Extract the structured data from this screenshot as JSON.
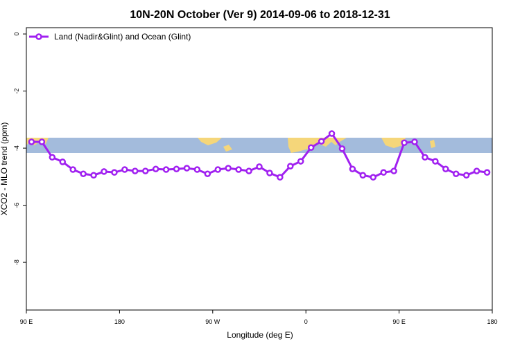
{
  "chart_data": {
    "type": "line",
    "title": "10N-20N October (Ver 9)   2014-09-06 to 2018-12-31",
    "x_label": "Longitude (deg E)",
    "y_label": "XCO2 - MLO trend (ppm)",
    "x": [
      95,
      105,
      115,
      125,
      135,
      145,
      155,
      165,
      175,
      185,
      195,
      205,
      215,
      225,
      235,
      245,
      255,
      265,
      275,
      285,
      295,
      305,
      315,
      325,
      335,
      345,
      355,
      365,
      375,
      385,
      395,
      405,
      415,
      425,
      435,
      445,
      455,
      465,
      475,
      485,
      495,
      505,
      515,
      525,
      535
    ],
    "series": [
      {
        "name": "Land (Nadir&Glint) and Ocean (Glint)",
        "color": "#a020f0",
        "values": [
          -3.78,
          -3.78,
          -4.32,
          -4.48,
          -4.75,
          -4.9,
          -4.95,
          -4.82,
          -4.85,
          -4.75,
          -4.8,
          -4.8,
          -4.73,
          -4.75,
          -4.73,
          -4.7,
          -4.75,
          -4.9,
          -4.75,
          -4.7,
          -4.75,
          -4.8,
          -4.65,
          -4.87,
          -5.02,
          -4.63,
          -4.46,
          -3.98,
          -3.76,
          -3.49,
          -4.02,
          -4.73,
          -4.95,
          -5.02,
          -4.85,
          -4.8,
          -3.81,
          -3.78,
          -4.32,
          -4.46,
          -4.73,
          -4.9,
          -4.95,
          -4.8,
          -4.85
        ]
      }
    ],
    "xlim": [
      90,
      540
    ],
    "xticks": [
      {
        "value": 90,
        "label": "90 E"
      },
      {
        "value": 180,
        "label": "180"
      },
      {
        "value": 270,
        "label": "90 W"
      },
      {
        "value": 360,
        "label": "0"
      },
      {
        "value": 450,
        "label": "90 E"
      },
      {
        "value": 540,
        "label": "180"
      }
    ],
    "ylim": [
      -9.67,
      0.22
    ],
    "yticks": [
      0,
      -2,
      -4,
      -6,
      -8
    ],
    "legend": "top-left"
  }
}
